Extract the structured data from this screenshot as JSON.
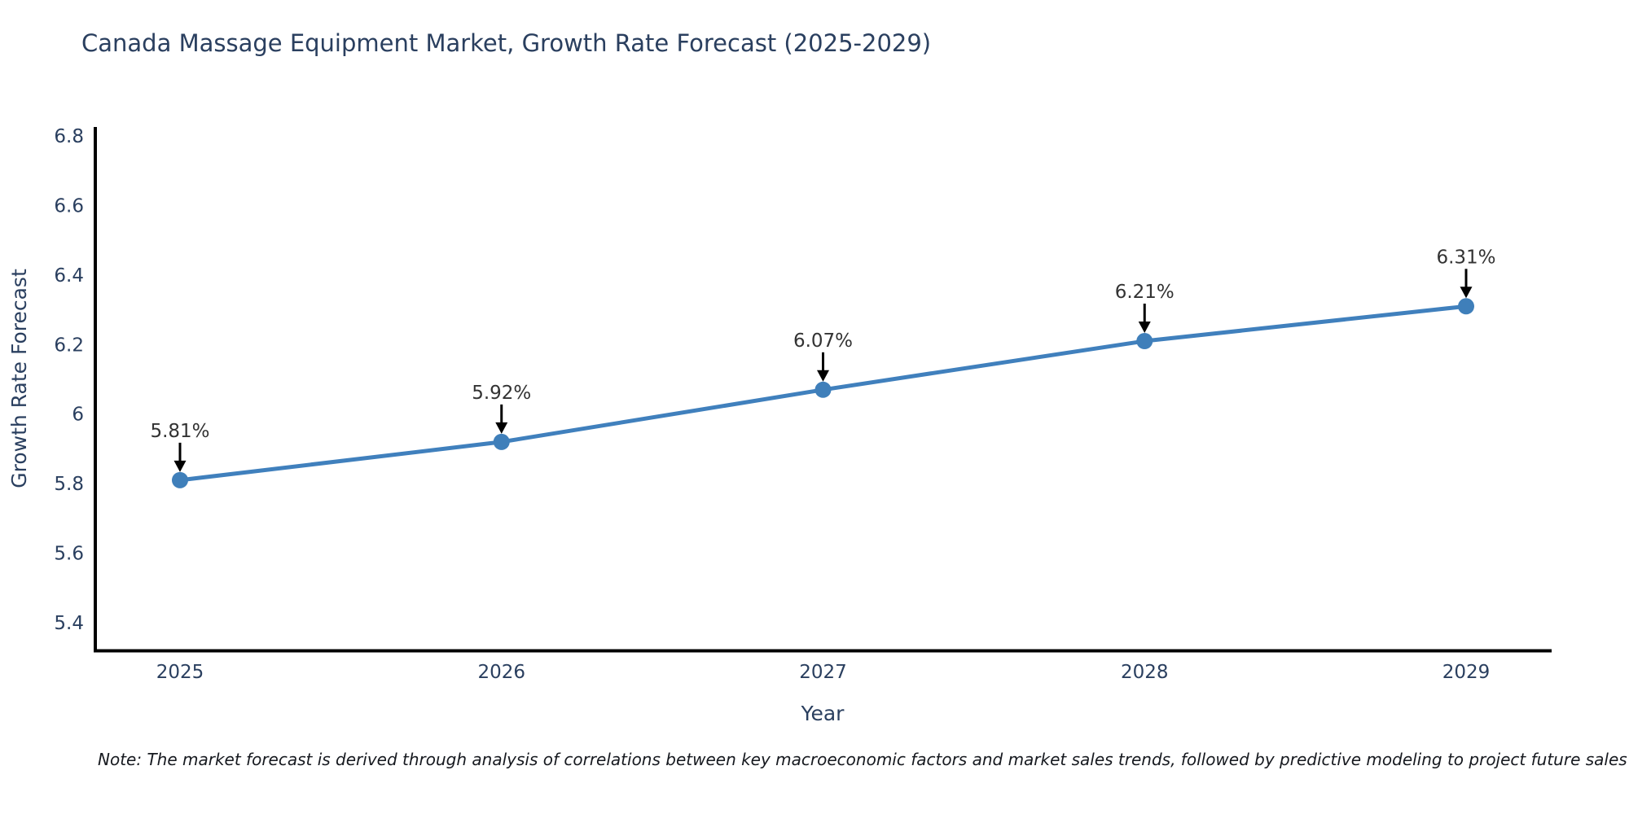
{
  "title": "Canada Massage Equipment Market, Growth Rate Forecast (2025-2029)",
  "note": "Note: The market forecast is derived through analysis of correlations between key macroeconomic factors and market sales trends, followed by predictive modeling to project future sales",
  "chart_data": {
    "type": "line",
    "title": "Canada Massage Equipment Market, Growth Rate Forecast (2025-2029)",
    "xlabel": "Year",
    "ylabel": "Growth Rate Forecast",
    "categories": [
      "2025",
      "2026",
      "2027",
      "2028",
      "2029"
    ],
    "series": [
      {
        "name": "Growth Rate Forecast",
        "values": [
          5.81,
          5.92,
          6.07,
          6.21,
          6.31
        ]
      }
    ],
    "point_labels": [
      "5.81%",
      "5.92%",
      "6.07%",
      "6.21%",
      "6.31%"
    ],
    "y_ticks": [
      6.8,
      6.6,
      6.4,
      6.2,
      6,
      5.8,
      5.6,
      5.4
    ],
    "ylim": [
      5.32,
      6.82
    ],
    "grid": false,
    "legend_position": "none",
    "colors": {
      "line": "#4080bd",
      "marker": "#3f7fba",
      "axis": "#000000",
      "tick_label": "#2a3f5f",
      "axis_title": "#2a3f5f",
      "chart_title": "#2a3f5f",
      "annotation_text": "#333333",
      "arrow": "#000000"
    }
  }
}
